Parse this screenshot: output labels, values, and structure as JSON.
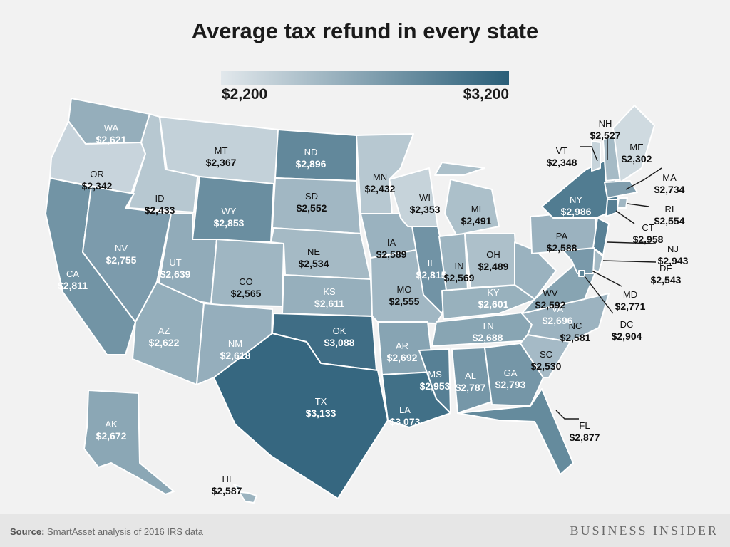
{
  "title": "Average tax refund in every state",
  "legend": {
    "min": "$2,200",
    "max": "$3,200",
    "low_color": "#e2e8ec",
    "high_color": "#2a5e78"
  },
  "source": {
    "label": "Source:",
    "text": " SmartAsset analysis of 2016 IRS data"
  },
  "brand": "BUSINESS INSIDER",
  "states": [
    {
      "code": "WA",
      "value": "$2,621"
    },
    {
      "code": "OR",
      "value": "$2,342"
    },
    {
      "code": "CA",
      "value": "$2,811"
    },
    {
      "code": "ID",
      "value": "$2,433"
    },
    {
      "code": "NV",
      "value": "$2,755"
    },
    {
      "code": "MT",
      "value": "$2,367"
    },
    {
      "code": "WY",
      "value": "$2,853"
    },
    {
      "code": "UT",
      "value": "$2,639"
    },
    {
      "code": "AZ",
      "value": "$2,622"
    },
    {
      "code": "CO",
      "value": "$2,565"
    },
    {
      "code": "NM",
      "value": "$2,618"
    },
    {
      "code": "ND",
      "value": "$2,896"
    },
    {
      "code": "SD",
      "value": "$2,552"
    },
    {
      "code": "NE",
      "value": "$2,534"
    },
    {
      "code": "KS",
      "value": "$2,611"
    },
    {
      "code": "OK",
      "value": "$3,088"
    },
    {
      "code": "TX",
      "value": "$3,133"
    },
    {
      "code": "MN",
      "value": "$2,432"
    },
    {
      "code": "IA",
      "value": "$2,589"
    },
    {
      "code": "MO",
      "value": "$2,555"
    },
    {
      "code": "AR",
      "value": "$2,692"
    },
    {
      "code": "LA",
      "value": "$3,073"
    },
    {
      "code": "WI",
      "value": "$2,353"
    },
    {
      "code": "IL",
      "value": "$2,815"
    },
    {
      "code": "MI",
      "value": "$2,491"
    },
    {
      "code": "IN",
      "value": "$2,569"
    },
    {
      "code": "OH",
      "value": "$2,489"
    },
    {
      "code": "KY",
      "value": "$2,601"
    },
    {
      "code": "TN",
      "value": "$2,688"
    },
    {
      "code": "MS",
      "value": "$2,953"
    },
    {
      "code": "AL",
      "value": "$2,787"
    },
    {
      "code": "GA",
      "value": "$2,793"
    },
    {
      "code": "FL",
      "value": "$2,877"
    },
    {
      "code": "SC",
      "value": "$2,530"
    },
    {
      "code": "NC",
      "value": "$2,581"
    },
    {
      "code": "VA",
      "value": "$2,696"
    },
    {
      "code": "WV",
      "value": "$2,592"
    },
    {
      "code": "PA",
      "value": "$2,588"
    },
    {
      "code": "NY",
      "value": "$2,986"
    },
    {
      "code": "VT",
      "value": "$2,348"
    },
    {
      "code": "NH",
      "value": "$2,527"
    },
    {
      "code": "ME",
      "value": "$2,302"
    },
    {
      "code": "MA",
      "value": "$2,734"
    },
    {
      "code": "RI",
      "value": "$2,554"
    },
    {
      "code": "CT",
      "value": "$2,958"
    },
    {
      "code": "NJ",
      "value": "$2,943"
    },
    {
      "code": "DE",
      "value": "$2,543"
    },
    {
      "code": "MD",
      "value": "$2,771"
    },
    {
      "code": "DC",
      "value": "$2,904"
    },
    {
      "code": "AK",
      "value": "$2,672"
    },
    {
      "code": "HI",
      "value": "$2,587"
    }
  ]
}
